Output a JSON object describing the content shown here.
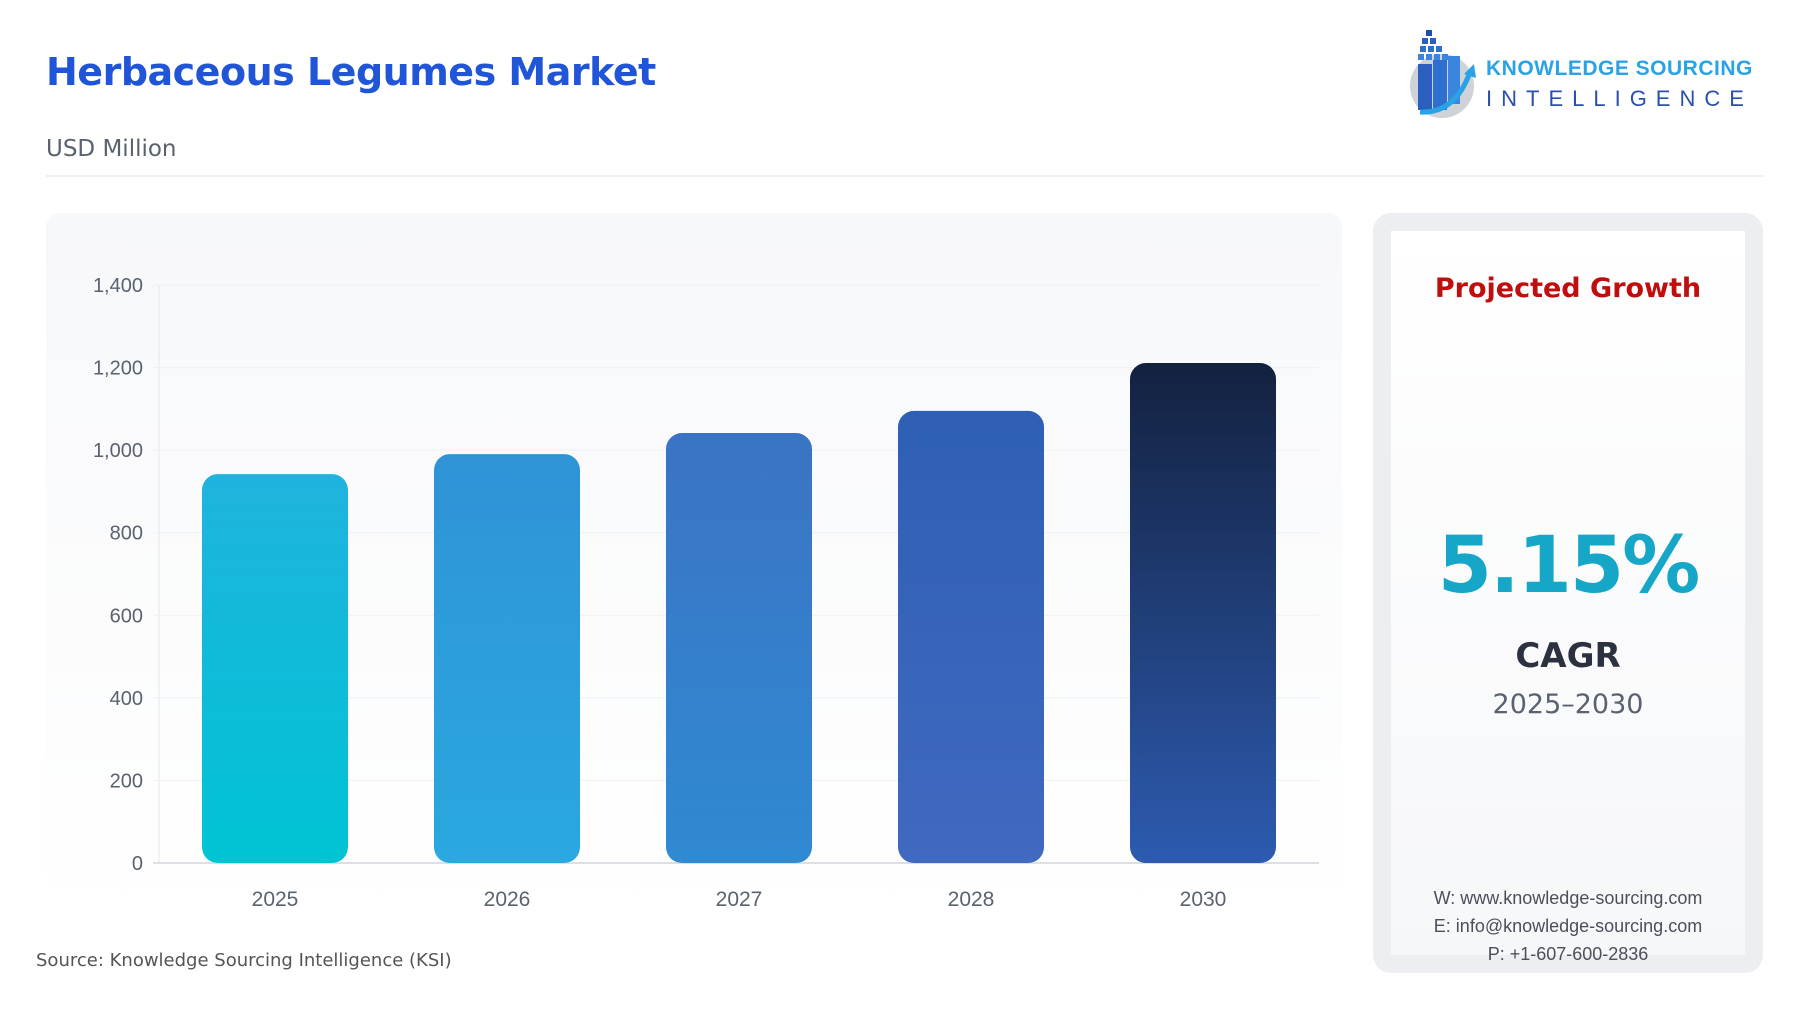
{
  "header": {
    "title": "Herbaceous Legumes Market",
    "unit": "USD Million"
  },
  "logo": {
    "line1": "KNOWLEDGE SOURCING",
    "line2": "INTELLIGENCE"
  },
  "chart_data": {
    "type": "bar",
    "categories": [
      "2025",
      "2026",
      "2027",
      "2028",
      "2030"
    ],
    "values": [
      942,
      990.5,
      1041.5,
      1095.1,
      1211
    ],
    "ylim": [
      0,
      1400
    ],
    "yticks": [
      0,
      200,
      400,
      600,
      800,
      1000,
      1200,
      1400
    ],
    "ytick_labels": [
      "0",
      "200",
      "400",
      "600",
      "800",
      "1,000",
      "1,200",
      "1,400"
    ],
    "grid": true,
    "colors": [
      [
        "#1fb3de",
        "#00c4d4"
      ],
      [
        "#2f93d6",
        "#2aa8e0"
      ],
      [
        "#3b73c4",
        "#2f8ad2"
      ],
      [
        "#2f5fb5",
        "#4069c0"
      ],
      [
        "#13213f",
        "#2d5bb0"
      ]
    ]
  },
  "source": "Source: Knowledge Sourcing Intelligence (KSI)",
  "side": {
    "heading": "Projected Growth",
    "value": "5.15%",
    "label": "CAGR",
    "period": "2025–2030",
    "website": "W: www.knowledge-sourcing.com",
    "email": "E: info@knowledge-sourcing.com",
    "phone": "P: +1-607-600-2836"
  }
}
